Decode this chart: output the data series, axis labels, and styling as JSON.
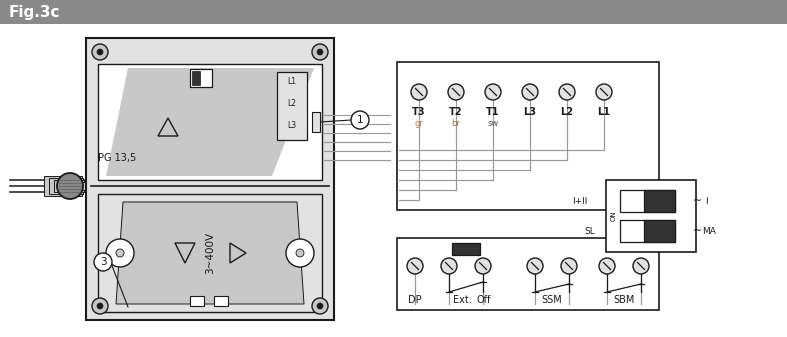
{
  "title": "Fig.3c",
  "title_bg": "#8a8a8a",
  "title_text_color": "#ffffff",
  "bg_color": "#ffffff",
  "lc": "#1a1a1a",
  "gray": "#c8c8c8",
  "lgray": "#e2e2e2",
  "dgray": "#333333",
  "wire_gray": "#999999",
  "sub_color_gr": "#b08050",
  "sub_color_br": "#a07040",
  "sub_color_sw": "#555555",
  "term_labels_top": [
    "T3",
    "T2",
    "T1",
    "L3",
    "L2",
    "L1"
  ],
  "term_sub_top": [
    "gr",
    "br",
    "sw",
    "",
    "",
    ""
  ],
  "pg_label": "PG 13,5",
  "label_1": "1",
  "label_3": "3",
  "voltage_label": "3~400V",
  "label_IpII": "I+II",
  "label_SL": "SL",
  "label_I": "I",
  "label_MA": "MA",
  "label_NO": "ON",
  "label_DP": "DP",
  "label_Ext": "Ext.",
  "label_Off": "Off",
  "label_SSM": "SSM",
  "label_SBM": "SBM"
}
